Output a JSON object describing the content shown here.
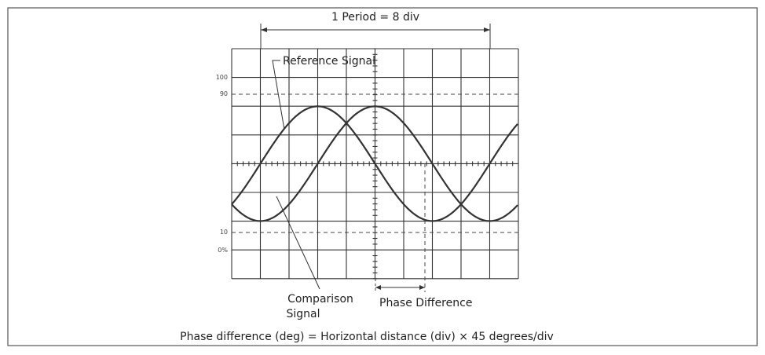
{
  "diagram": {
    "period_label": "1 Period = 8 div",
    "reference_label": "Reference Signal",
    "comparison_label": [
      "Comparison",
      "Signal"
    ],
    "phase_label": "Phase Difference",
    "scale_labels": [
      "100",
      "90",
      "10",
      "0%"
    ],
    "formula": "Phase difference (deg) = Horizontal distance (div) × 45 degrees/div"
  }
}
